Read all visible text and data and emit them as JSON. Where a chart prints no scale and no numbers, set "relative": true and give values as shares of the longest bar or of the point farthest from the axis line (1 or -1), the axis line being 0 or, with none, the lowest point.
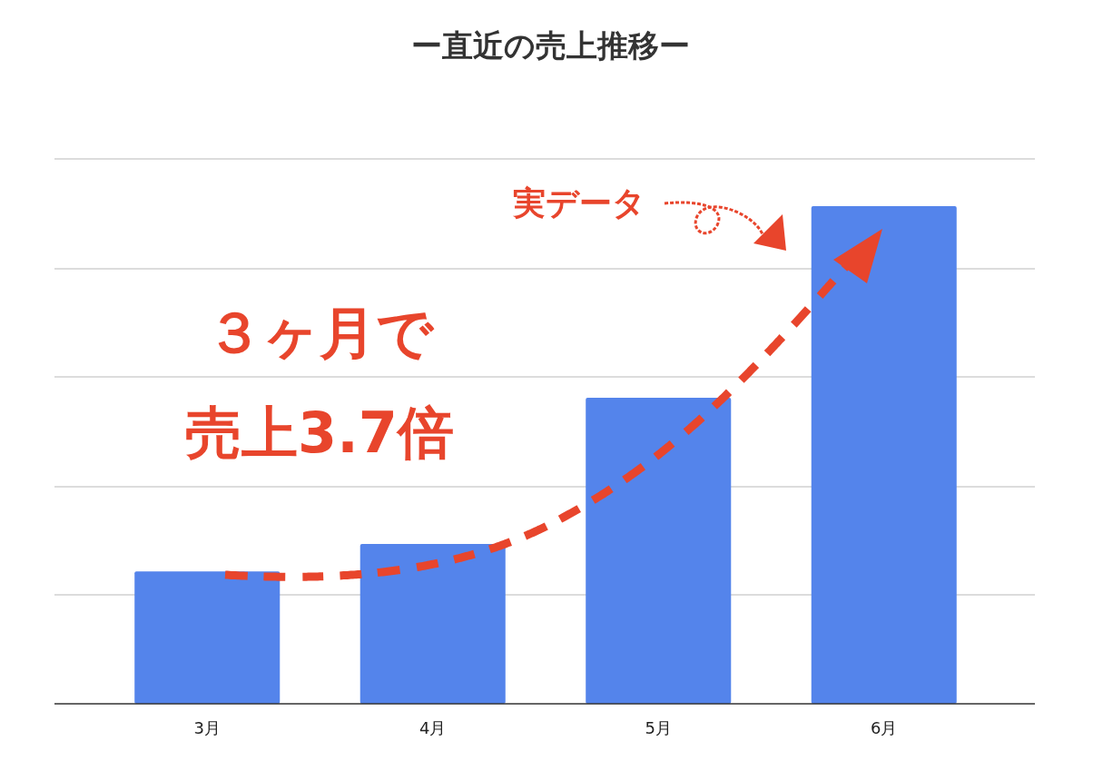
{
  "chart_data": {
    "type": "bar",
    "title": "ー直近の売上推移ー",
    "categories": [
      "3月",
      "4月",
      "5月",
      "6月"
    ],
    "values": [
      0.266,
      0.321,
      0.615,
      1
    ],
    "color": "#5484eb",
    "relative": true,
    "grid": "y",
    "annotations": [
      "実データ",
      "３ヶ月で",
      "売上3.7倍"
    ]
  }
}
